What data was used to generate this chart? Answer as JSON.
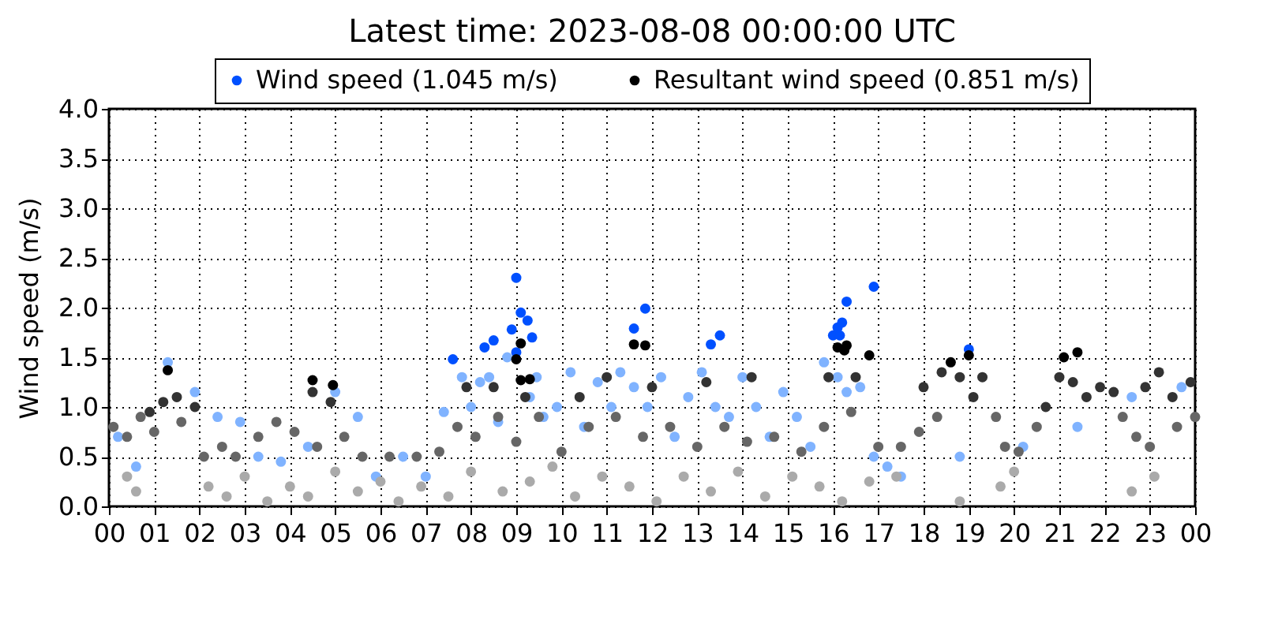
{
  "chart_data": {
    "type": "scatter",
    "title": "Latest time: 2023-08-08 00:00:00 UTC",
    "ylabel": "Wind speed (m/s)",
    "xlim": [
      0,
      24
    ],
    "ylim": [
      0,
      4
    ],
    "xticks": [
      {
        "value": 0,
        "label": "00"
      },
      {
        "value": 1,
        "label": "01"
      },
      {
        "value": 2,
        "label": "02"
      },
      {
        "value": 3,
        "label": "03"
      },
      {
        "value": 4,
        "label": "04"
      },
      {
        "value": 5,
        "label": "05"
      },
      {
        "value": 6,
        "label": "06"
      },
      {
        "value": 7,
        "label": "07"
      },
      {
        "value": 8,
        "label": "08"
      },
      {
        "value": 9,
        "label": "09"
      },
      {
        "value": 10,
        "label": "10"
      },
      {
        "value": 11,
        "label": "11"
      },
      {
        "value": 12,
        "label": "12"
      },
      {
        "value": 13,
        "label": "13"
      },
      {
        "value": 14,
        "label": "14"
      },
      {
        "value": 15,
        "label": "15"
      },
      {
        "value": 16,
        "label": "16"
      },
      {
        "value": 17,
        "label": "17"
      },
      {
        "value": 18,
        "label": "18"
      },
      {
        "value": 19,
        "label": "19"
      },
      {
        "value": 20,
        "label": "20"
      },
      {
        "value": 21,
        "label": "21"
      },
      {
        "value": 22,
        "label": "22"
      },
      {
        "value": 23,
        "label": "23"
      },
      {
        "value": 24,
        "label": "00"
      }
    ],
    "yticks": [
      {
        "value": 0,
        "label": "0.0"
      },
      {
        "value": 0.5,
        "label": "0.5"
      },
      {
        "value": 1,
        "label": "1.0"
      },
      {
        "value": 1.5,
        "label": "1.5"
      },
      {
        "value": 2,
        "label": "2.0"
      },
      {
        "value": 2.5,
        "label": "2.5"
      },
      {
        "value": 3,
        "label": "3.0"
      },
      {
        "value": 3.5,
        "label": "3.5"
      },
      {
        "value": 4,
        "label": "4.0"
      }
    ],
    "grid": true,
    "legend": "top",
    "marker": "circle",
    "series": [
      {
        "color": "#80b3ff",
        "x": [
          0.2,
          0.6,
          1.3,
          1.9,
          2.4,
          2.9,
          3.3,
          3.8,
          4.4,
          5.0,
          5.5,
          5.9,
          6.5,
          7.0,
          7.4,
          7.8,
          8.0,
          8.2,
          8.4,
          8.6,
          8.8,
          9.45,
          9.3,
          9.6,
          9.9,
          10.2,
          10.5,
          10.8,
          11.1,
          11.3,
          11.6,
          11.9,
          12.2,
          12.5,
          12.8,
          13.1,
          13.4,
          13.7,
          14.0,
          14.3,
          14.6,
          14.9,
          15.2,
          15.5,
          15.8,
          16.1,
          16.3,
          16.6,
          16.9,
          17.2,
          17.5,
          18.8,
          20.2,
          21.4,
          22.6,
          23.7
        ],
        "values": [
          0.7,
          0.4,
          1.45,
          1.15,
          0.9,
          0.85,
          0.5,
          0.45,
          0.6,
          1.15,
          0.9,
          0.3,
          0.5,
          0.3,
          0.95,
          1.3,
          1.0,
          1.25,
          1.3,
          0.85,
          1.5,
          1.3,
          1.1,
          0.9,
          1.0,
          1.35,
          0.8,
          1.25,
          1.0,
          1.35,
          1.2,
          1.0,
          1.3,
          0.7,
          1.1,
          1.35,
          1.0,
          0.9,
          1.3,
          1.0,
          0.7,
          1.15,
          0.9,
          0.6,
          1.45,
          1.3,
          1.15,
          1.2,
          0.5,
          0.4,
          0.3,
          0.5,
          0.6,
          0.8,
          1.1,
          1.2
        ]
      },
      {
        "name": "Wind speed (1.045 m/s)",
        "color": "#0050ff",
        "x": [
          7.6,
          8.3,
          8.5,
          8.9,
          9.0,
          9.1,
          9.25,
          9.0,
          9.35,
          11.6,
          11.85,
          13.3,
          13.5,
          16.0,
          16.1,
          16.2,
          16.3,
          16.9,
          16.15,
          19.0
        ],
        "values": [
          1.48,
          1.6,
          1.67,
          1.78,
          2.3,
          1.95,
          1.87,
          1.55,
          1.7,
          1.79,
          1.99,
          1.63,
          1.72,
          1.72,
          1.8,
          1.85,
          2.06,
          2.21,
          1.72,
          1.58
        ]
      },
      {
        "color": "#aaaaaa",
        "x": [
          0.4,
          0.6,
          2.2,
          2.6,
          3.0,
          3.5,
          4.0,
          4.4,
          5.0,
          5.5,
          6.0,
          6.4,
          6.9,
          7.5,
          8.0,
          8.7,
          9.3,
          9.8,
          10.3,
          10.9,
          11.5,
          12.1,
          12.7,
          13.3,
          13.9,
          14.5,
          15.1,
          15.7,
          16.2,
          16.8,
          17.4,
          18.8,
          19.7,
          20.0,
          22.6,
          23.1
        ],
        "values": [
          0.3,
          0.15,
          0.2,
          0.1,
          0.3,
          0.05,
          0.2,
          0.1,
          0.35,
          0.15,
          0.25,
          0.05,
          0.2,
          0.1,
          0.35,
          0.15,
          0.25,
          0.4,
          0.1,
          0.3,
          0.2,
          0.05,
          0.3,
          0.15,
          0.35,
          0.1,
          0.3,
          0.2,
          0.05,
          0.25,
          0.3,
          0.05,
          0.2,
          0.35,
          0.15,
          0.3
        ]
      },
      {
        "color": "#666666",
        "x": [
          0.1,
          0.4,
          0.7,
          1.0,
          1.6,
          2.1,
          2.5,
          2.8,
          3.3,
          3.7,
          4.1,
          4.6,
          5.2,
          5.6,
          6.2,
          6.8,
          7.3,
          7.7,
          8.1,
          8.6,
          9.0,
          9.5,
          10.0,
          10.6,
          11.2,
          11.8,
          12.4,
          13.0,
          13.6,
          14.1,
          14.7,
          15.3,
          15.8,
          16.4,
          17.0,
          17.5,
          17.9,
          18.3,
          19.6,
          19.8,
          20.1,
          20.5,
          22.4,
          22.7,
          23.0,
          23.6,
          24.0
        ],
        "values": [
          0.8,
          0.7,
          0.9,
          0.75,
          0.85,
          0.5,
          0.6,
          0.5,
          0.7,
          0.85,
          0.75,
          0.6,
          0.7,
          0.5,
          0.5,
          0.5,
          0.55,
          0.8,
          0.7,
          0.9,
          0.65,
          0.9,
          0.55,
          0.8,
          0.9,
          0.7,
          0.8,
          0.6,
          0.8,
          0.65,
          0.7,
          0.55,
          0.8,
          0.95,
          0.6,
          0.6,
          0.75,
          0.9,
          0.9,
          0.6,
          0.55,
          0.8,
          0.9,
          0.7,
          0.6,
          0.8,
          0.9
        ]
      },
      {
        "color": "#333333",
        "x": [
          0.9,
          1.2,
          1.5,
          1.9,
          4.5,
          4.9,
          7.9,
          8.5,
          9.2,
          10.4,
          11.0,
          12.0,
          13.2,
          14.2,
          15.9,
          16.5,
          18.0,
          18.4,
          18.8,
          19.1,
          19.3,
          20.7,
          21.0,
          21.3,
          21.6,
          21.9,
          22.2,
          22.9,
          23.2,
          23.5,
          23.9
        ],
        "values": [
          0.95,
          1.05,
          1.1,
          1.0,
          1.15,
          1.05,
          1.2,
          1.2,
          1.1,
          1.1,
          1.3,
          1.2,
          1.25,
          1.3,
          1.3,
          1.3,
          1.2,
          1.35,
          1.3,
          1.1,
          1.3,
          1.0,
          1.3,
          1.25,
          1.1,
          1.2,
          1.15,
          1.2,
          1.35,
          1.1,
          1.25
        ]
      },
      {
        "name": "Resultant wind speed (0.851 m/s)",
        "color": "#000000",
        "x": [
          1.3,
          4.5,
          4.95,
          9.0,
          9.1,
          9.1,
          9.3,
          11.6,
          11.85,
          16.1,
          16.25,
          16.3,
          16.8,
          18.6,
          19.0,
          21.1,
          21.4
        ],
        "values": [
          1.37,
          1.27,
          1.22,
          1.48,
          1.64,
          1.27,
          1.28,
          1.63,
          1.62,
          1.6,
          1.57,
          1.62,
          1.52,
          1.45,
          1.52,
          1.5,
          1.55
        ]
      }
    ]
  }
}
